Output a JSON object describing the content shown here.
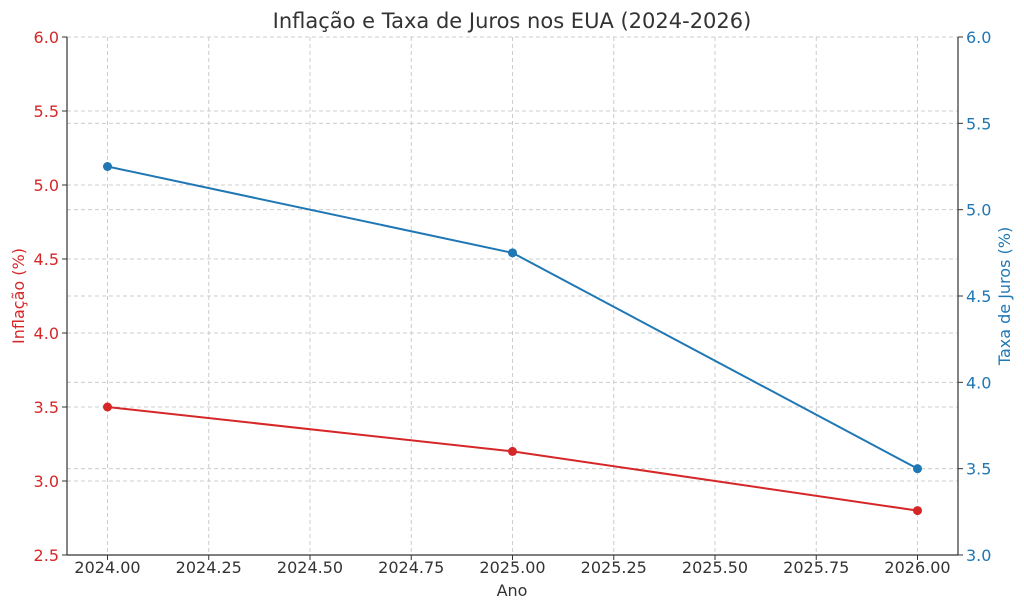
{
  "chart_data": {
    "type": "line",
    "title": "Inflação e Taxa de Juros nos EUA (2024-2026)",
    "xlabel": "Ano",
    "ylabel_left": "Inflação (%)",
    "ylabel_right": "Taxa de Juros (%)",
    "xlim": [
      2023.9,
      2026.1
    ],
    "ylim_left": [
      2.5,
      6.0
    ],
    "ylim_right": [
      3.0,
      6.0
    ],
    "x_ticks": [
      "2024.00",
      "2024.25",
      "2024.50",
      "2024.75",
      "2025.00",
      "2025.25",
      "2025.50",
      "2025.75",
      "2026.00"
    ],
    "y_ticks_left": [
      "2.5",
      "3.0",
      "3.5",
      "4.0",
      "4.5",
      "5.0",
      "5.5",
      "6.0"
    ],
    "y_ticks_right": [
      "3.0",
      "3.5",
      "4.0",
      "4.5",
      "5.0",
      "5.5",
      "6.0"
    ],
    "grid": true,
    "series": [
      {
        "axis": "left",
        "color": "#d62728",
        "x": [
          2024,
          2025,
          2026
        ],
        "values": [
          3.5,
          3.2,
          2.8
        ]
      },
      {
        "axis": "right",
        "color": "#1f77b4",
        "x": [
          2024,
          2025,
          2026
        ],
        "values": [
          5.25,
          4.75,
          3.5
        ]
      }
    ]
  }
}
